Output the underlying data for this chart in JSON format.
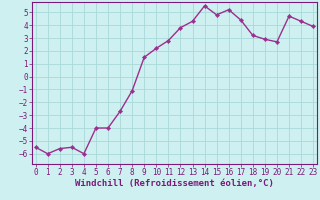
{
  "xlabel": "Windchill (Refroidissement éolien,°C)",
  "x_values": [
    0,
    1,
    2,
    3,
    4,
    5,
    6,
    7,
    8,
    9,
    10,
    11,
    12,
    13,
    14,
    15,
    16,
    17,
    18,
    19,
    20,
    21,
    22,
    23
  ],
  "y_values": [
    -5.5,
    -6.0,
    -5.6,
    -5.5,
    -6.0,
    -4.0,
    -4.0,
    -2.7,
    -1.1,
    1.5,
    2.2,
    2.8,
    3.8,
    4.3,
    5.5,
    4.8,
    5.2,
    4.4,
    3.2,
    2.9,
    2.7,
    4.7,
    4.3,
    3.9
  ],
  "line_color": "#9b2f8e",
  "marker": "D",
  "marker_size": 2.2,
  "background_color": "#cef0f0",
  "grid_color": "#a8d8d8",
  "label_color": "#7b1a7a",
  "ylim": [
    -6.8,
    5.8
  ],
  "yticks": [
    -6,
    -5,
    -4,
    -3,
    -2,
    -1,
    0,
    1,
    2,
    3,
    4,
    5
  ],
  "xticks": [
    0,
    1,
    2,
    3,
    4,
    5,
    6,
    7,
    8,
    9,
    10,
    11,
    12,
    13,
    14,
    15,
    16,
    17,
    18,
    19,
    20,
    21,
    22,
    23
  ],
  "tick_fontsize": 5.5,
  "label_fontsize": 6.5,
  "linewidth": 1.0
}
